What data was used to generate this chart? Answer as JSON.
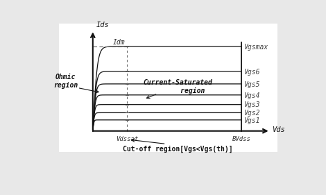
{
  "background_color": "#e8e8e8",
  "plot_bg": "#ffffff",
  "curve_color": "#111111",
  "dashed_color": "#666666",
  "axis_color": "#111111",
  "vdssat": 0.2,
  "bvdss": 0.87,
  "idm_level": 0.88,
  "curve_levels": [
    0.115,
    0.19,
    0.275,
    0.375,
    0.49,
    0.62,
    0.88
  ],
  "curve_labels": [
    "Vgs1",
    "Vgs2",
    "Vgs3",
    "Vgs4",
    "Vgs5",
    "Vgs6",
    "Vgsmax"
  ],
  "xlabel_bottom": "Cut-off region[Vgs<Vgs(th)]",
  "label_vdssat": "Vdssat",
  "label_bvdss": "BVdss",
  "label_ids": "Ids",
  "label_vds": "Vds",
  "label_idm": "Idm",
  "label_ohmic": "Ohmic\nregion",
  "label_saturated": "Current-Saturated\n       region",
  "font_size": 7.5
}
